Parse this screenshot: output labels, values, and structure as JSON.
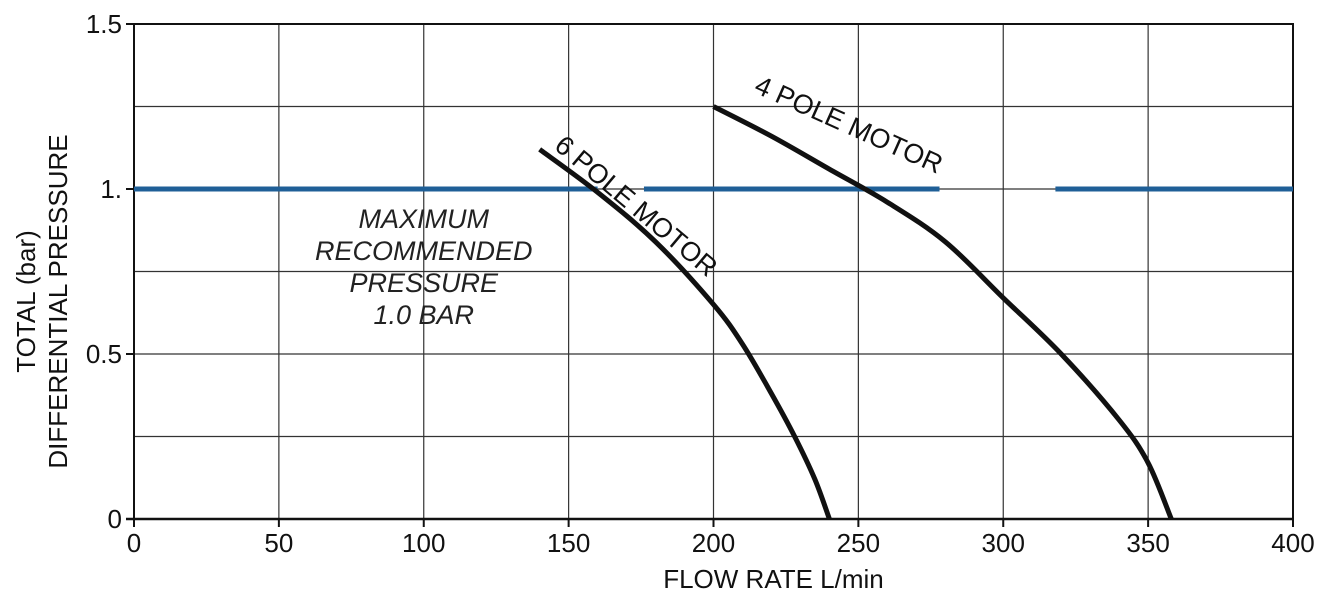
{
  "chart_data": {
    "type": "line",
    "xlabel": "FLOW RATE L/min",
    "ylabel": [
      "TOTAL (bar)",
      "DIFFERENTIAL PRESSURE"
    ],
    "xlim": [
      0,
      400
    ],
    "ylim": [
      0,
      1.5
    ],
    "x_ticks": [
      0,
      50,
      100,
      150,
      200,
      250,
      300,
      350,
      400
    ],
    "x_tick_labels": [
      "0",
      "50",
      "100",
      "150",
      "200",
      "250",
      "300",
      "350",
      "400"
    ],
    "y_ticks": [
      0,
      0.5,
      1,
      1.5
    ],
    "y_tick_labels": [
      "0",
      "0.5",
      "1.",
      "1.5"
    ],
    "grid": true,
    "colors": {
      "curve": "#111111",
      "max_pressure_line": "#1f5f97",
      "grid": "#333333"
    },
    "series": [
      {
        "name": "6 POLE MOTOR",
        "x": [
          140,
          160,
          180,
          200,
          210,
          220,
          228,
          235,
          240
        ],
        "y": [
          1.12,
          0.99,
          0.84,
          0.65,
          0.53,
          0.38,
          0.25,
          0.12,
          0.0
        ]
      },
      {
        "name": "4 POLE MOTOR",
        "x": [
          200,
          220,
          240,
          260,
          280,
          300,
          320,
          340,
          350,
          358
        ],
        "y": [
          1.25,
          1.16,
          1.06,
          0.96,
          0.84,
          0.67,
          0.5,
          0.3,
          0.17,
          0.0
        ]
      }
    ],
    "max_pressure": {
      "value": 1.0,
      "gaps": [
        [
          160,
          176
        ],
        [
          278,
          318
        ]
      ],
      "annotation": [
        "MAXIMUM",
        "RECOMMENDED",
        "PRESSURE",
        "1.0 BAR"
      ]
    }
  }
}
